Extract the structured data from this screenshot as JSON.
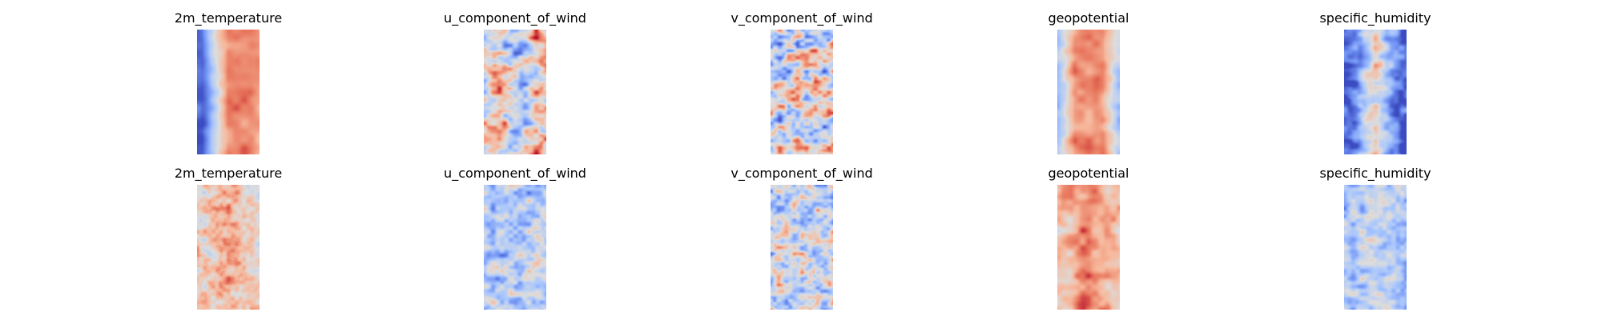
{
  "chart_data": {
    "type": "heatmap",
    "colormap": "coolwarm",
    "colormap_stops": [
      "#3b4cc0",
      "#7092f3",
      "#aac7fd",
      "#dddddd",
      "#f7b89c",
      "#e7745b",
      "#b40426"
    ],
    "grid": false,
    "axes_visible": false,
    "rows": 2,
    "columns": 5,
    "panels": [
      {
        "title": "2m_temperature"
      },
      {
        "title": "u_component_of_wind"
      },
      {
        "title": "v_component_of_wind"
      },
      {
        "title": "geopotential"
      },
      {
        "title": "specific_humidity"
      },
      {
        "title": "2m_temperature"
      },
      {
        "title": "u_component_of_wind"
      },
      {
        "title": "v_component_of_wind"
      },
      {
        "title": "geopotential"
      },
      {
        "title": "specific_humidity"
      }
    ]
  }
}
